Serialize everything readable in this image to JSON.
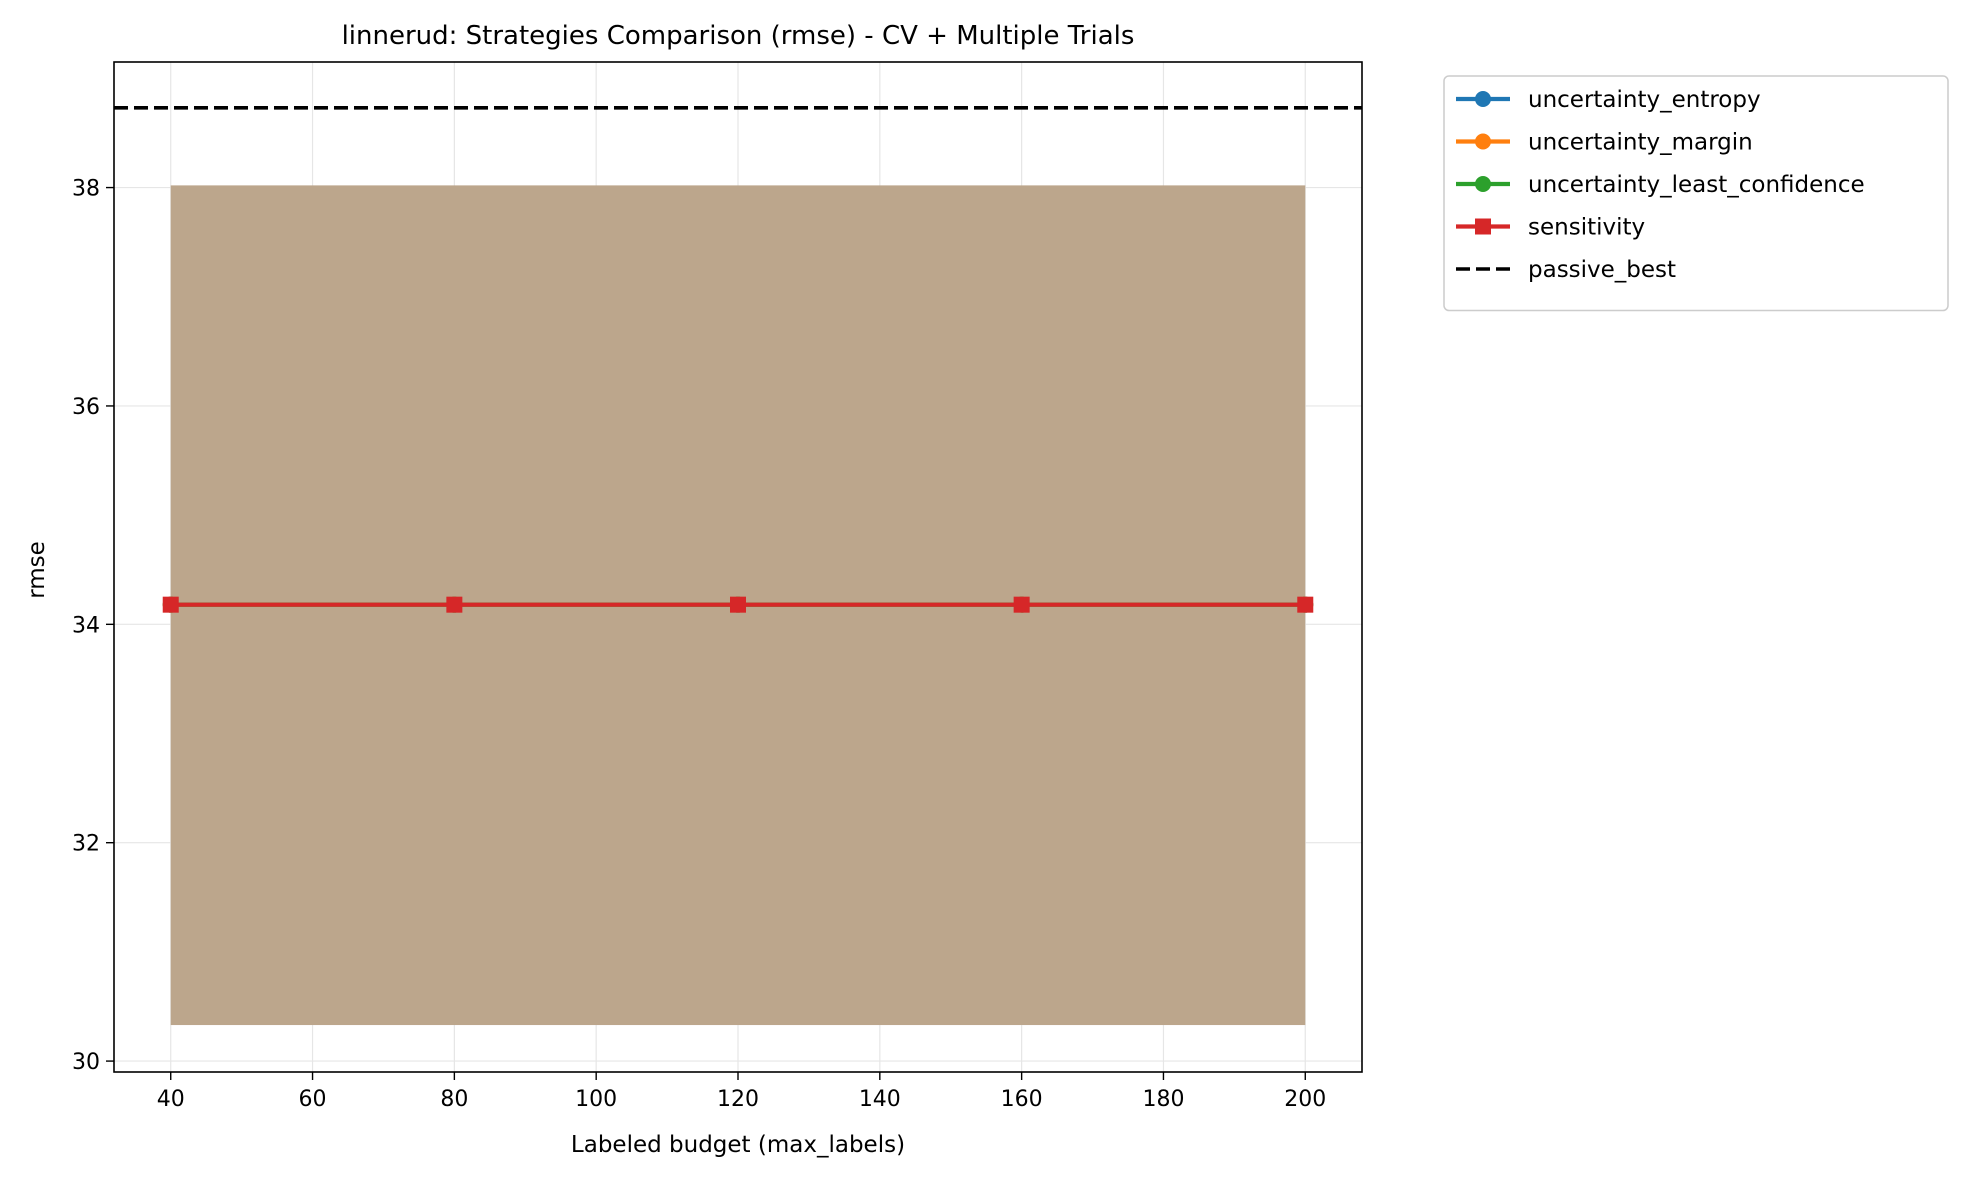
{
  "chart_data": {
    "type": "line",
    "title": "linnerud: Strategies Comparison (rmse) - CV + Multiple Trials",
    "xlabel": "Labeled budget (max_labels)",
    "ylabel": "rmse",
    "xlim": [
      32,
      208
    ],
    "ylim": [
      29.9,
      39.15
    ],
    "xticks": [
      40,
      60,
      80,
      100,
      120,
      140,
      160,
      180,
      200
    ],
    "yticks": [
      30,
      32,
      34,
      36,
      38
    ],
    "grid": true,
    "legend_position": "outside-right",
    "x": [
      40,
      80,
      120,
      160,
      200
    ],
    "series": [
      {
        "name": "uncertainty_entropy",
        "color": "#1f77b4",
        "marker": "circle",
        "values": [
          34.18,
          34.18,
          34.18,
          34.18,
          34.18
        ],
        "band": [
          30.33,
          38.02
        ]
      },
      {
        "name": "uncertainty_margin",
        "color": "#ff7f0e",
        "marker": "circle",
        "values": [
          34.18,
          34.18,
          34.18,
          34.18,
          34.18
        ],
        "band": [
          30.33,
          38.02
        ]
      },
      {
        "name": "uncertainty_least_confidence",
        "color": "#2ca02c",
        "marker": "circle",
        "values": [
          34.18,
          34.18,
          34.18,
          34.18,
          34.18
        ],
        "band": [
          30.33,
          38.02
        ]
      },
      {
        "name": "sensitivity",
        "color": "#d62728",
        "marker": "square",
        "values": [
          34.18,
          34.18,
          34.18,
          34.18,
          34.18
        ],
        "band": [
          30.33,
          38.02
        ]
      }
    ],
    "reference_lines": [
      {
        "name": "passive_best",
        "color": "#000000",
        "style": "dashed",
        "y": 38.73
      }
    ],
    "band_fill_color": "#bca68c"
  }
}
